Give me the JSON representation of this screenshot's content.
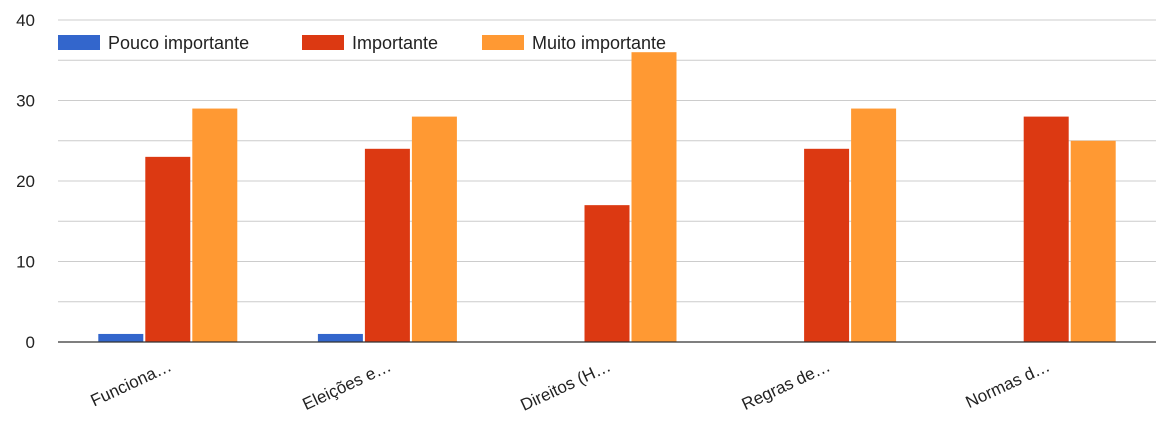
{
  "chart_data": {
    "type": "bar",
    "title": "",
    "xlabel": "",
    "ylabel": "",
    "categories": [
      "Funciona…",
      "Eleições e…",
      "Direitos (H…",
      "Regras de…",
      "Normas d…"
    ],
    "series": [
      {
        "name": "Pouco importante",
        "color": "#3366cc",
        "values": [
          1,
          1,
          0,
          0,
          0
        ]
      },
      {
        "name": "Importante",
        "color": "#dc3912",
        "values": [
          23,
          24,
          17,
          24,
          28
        ]
      },
      {
        "name": "Muito importante",
        "color": "#ff9933",
        "values": [
          29,
          28,
          36,
          29,
          25
        ]
      }
    ],
    "ylim": [
      0,
      40
    ],
    "yticks": [
      "0",
      "10",
      "20",
      "30",
      "40"
    ],
    "grid": true,
    "legend_position": "top-left"
  }
}
